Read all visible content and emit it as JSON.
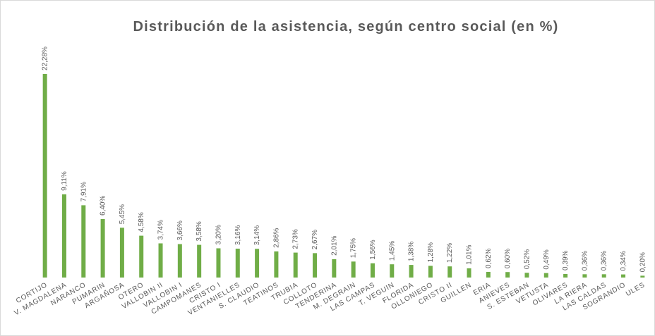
{
  "chart_data": {
    "type": "bar",
    "title": "Distribución de la asistencia, según centro social (en %)",
    "categories": [
      "CORTIJO",
      "V. MAGDALENA",
      "NARANCO",
      "PUMARIN",
      "ARGAÑOSA",
      "OTERO",
      "VALLOBIN II",
      "VALLOBIN I",
      "CAMPOMANES",
      "CRISTO I",
      "VENTANIELLES",
      "S. CLAUDIO",
      "TEATINOS",
      "TRUBIA",
      "COLLOTO",
      "TENDERINA",
      "M. DEGRAIN",
      "LAS CAMPAS",
      "T. VEGUIN",
      "FLORIDA",
      "OLLONIEGO",
      "CRISTO II",
      "GUILLEN",
      "ERIA",
      "ANIEVES",
      "S. ESTEBAN",
      "VETUSTA",
      "OLIVARES",
      "LA RIERA",
      "LAS CALDAS",
      "SOGRANDIO",
      "ULES"
    ],
    "values": [
      22.28,
      9.11,
      7.91,
      6.4,
      5.45,
      4.58,
      3.74,
      3.66,
      3.58,
      3.2,
      3.16,
      3.14,
      2.86,
      2.73,
      2.67,
      2.01,
      1.75,
      1.56,
      1.45,
      1.38,
      1.28,
      1.22,
      1.01,
      0.62,
      0.6,
      0.52,
      0.49,
      0.39,
      0.36,
      0.36,
      0.34,
      0.2
    ],
    "value_labels": [
      "22,28%",
      "9,11%",
      "7,91%",
      "6,40%",
      "5,45%",
      "4,58%",
      "3,74%",
      "3,66%",
      "3,58%",
      "3,20%",
      "3,16%",
      "3,14%",
      "2,86%",
      "2,73%",
      "2,67%",
      "2,01%",
      "1,75%",
      "1,56%",
      "1,45%",
      "1,38%",
      "1,28%",
      "1,22%",
      "1,01%",
      "0,62%",
      "0,60%",
      "0,52%",
      "0,49%",
      "0,39%",
      "0,36%",
      "0,36%",
      "0,34%",
      "0,20%"
    ],
    "color": "#70ad47"
  }
}
